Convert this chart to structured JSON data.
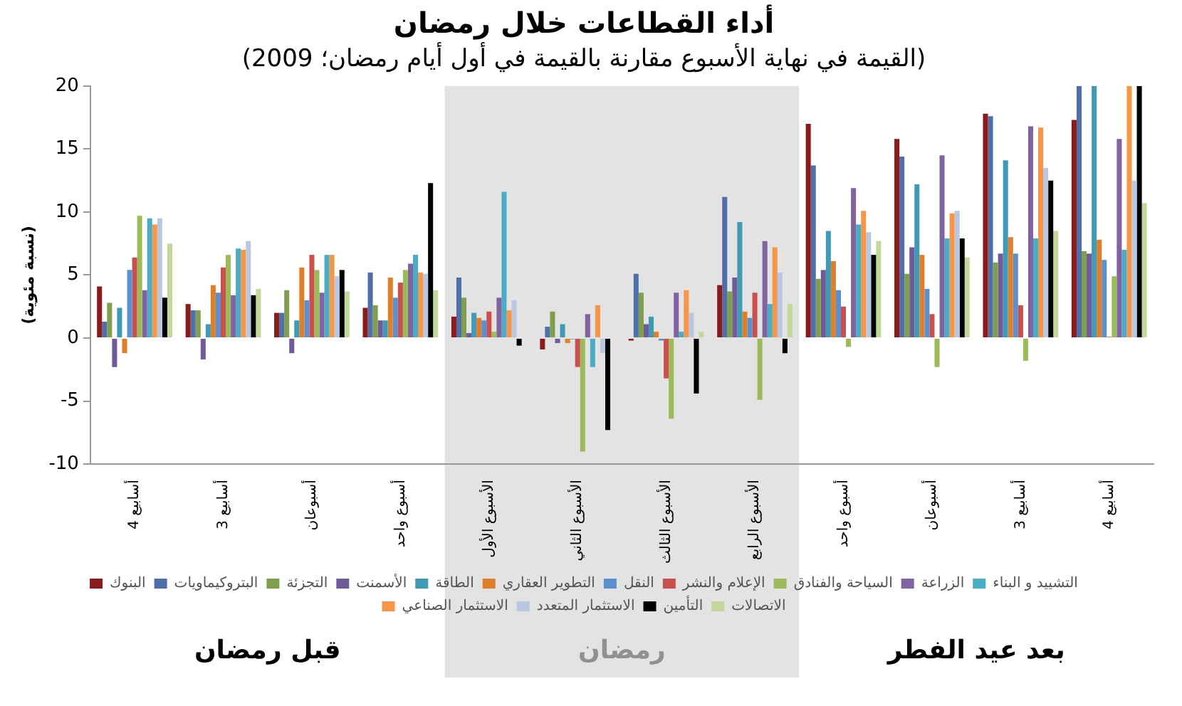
{
  "chart_data": {
    "type": "bar",
    "title": "أداء القطاعات خلال رمضان",
    "subtitle": "(القيمة في نهاية الأسبوع مقارنة بالقيمة في أول أيام رمضان؛ 2009)",
    "ylabel": "(نسبة مئوية)",
    "categories": [
      "4 أسابيع",
      "3 أسابيع",
      "أسبوعان",
      "أسبوع واحد",
      "الأسبوع الأول",
      "الأسبوع الثاني",
      "الأسبوع الثالث",
      "الأسبوع الرابع",
      "أسبوع واحد",
      "أسبوعان",
      "3 أسابيع",
      "4 أسابيع"
    ],
    "ylim": [
      -10,
      20
    ],
    "yticks": [
      -10,
      -5,
      0,
      5,
      10,
      15,
      20
    ],
    "grid": false,
    "legend": "bottom",
    "bands": [
      {
        "axis": "x",
        "from": "الأسبوع الأول",
        "to": "الأسبوع الرابع",
        "label": "رمضان",
        "color": "#e3e3e3"
      }
    ],
    "annotations": [
      "قبل رمضان",
      "بعد عيد الفطر"
    ],
    "series": [
      {
        "name": "البنوك",
        "color": "#8b1a1a",
        "values": [
          4.1,
          2.7,
          2.0,
          2.4,
          1.7,
          -0.9,
          -0.2,
          4.2,
          17.0,
          15.8,
          17.8,
          17.3
        ]
      },
      {
        "name": "البتروكيماويات",
        "color": "#4f6fa8",
        "values": [
          1.3,
          2.2,
          2.0,
          5.2,
          4.8,
          0.9,
          5.1,
          11.2,
          13.7,
          14.4,
          17.6,
          20
        ]
      },
      {
        "name": "التجزئة",
        "color": "#7f9f4f",
        "values": [
          2.8,
          2.2,
          3.8,
          2.6,
          3.2,
          2.1,
          3.6,
          3.7,
          4.7,
          5.1,
          6.0,
          6.9
        ]
      },
      {
        "name": "الأسمنت",
        "color": "#6f5a9a",
        "values": [
          -2.3,
          -1.7,
          -1.2,
          1.4,
          0.4,
          -0.4,
          1.1,
          4.8,
          5.4,
          7.2,
          6.7,
          6.7
        ]
      },
      {
        "name": "الطاقة",
        "color": "#3f9bb5",
        "values": [
          2.4,
          1.1,
          1.4,
          1.4,
          2.0,
          1.1,
          1.7,
          9.2,
          8.5,
          12.2,
          14.1,
          20
        ]
      },
      {
        "name": "التطوير العقاري",
        "color": "#e07f2a",
        "values": [
          -1.2,
          4.2,
          5.6,
          4.8,
          1.6,
          -0.4,
          0.5,
          2.1,
          6.1,
          6.6,
          8.0,
          7.8
        ]
      },
      {
        "name": "النقل",
        "color": "#5b8fd0",
        "values": [
          5.4,
          3.6,
          3.0,
          3.2,
          1.4,
          -0.1,
          -0.2,
          1.6,
          3.8,
          3.9,
          6.7,
          6.2
        ]
      },
      {
        "name": "الإعلام والنشر",
        "color": "#c9504d",
        "values": [
          6.4,
          5.6,
          6.6,
          4.4,
          2.1,
          -2.3,
          -3.2,
          3.6,
          2.5,
          1.9,
          2.6,
          0.1
        ]
      },
      {
        "name": "السياحة والفنادق",
        "color": "#9bbb59",
        "values": [
          9.7,
          6.6,
          5.4,
          5.4,
          0.5,
          -9.0,
          -6.4,
          -4.9,
          -0.7,
          -2.3,
          -1.8,
          4.9
        ]
      },
      {
        "name": "الزراعة",
        "color": "#8064a2",
        "values": [
          3.8,
          3.4,
          3.6,
          5.9,
          3.2,
          1.9,
          3.6,
          7.7,
          11.9,
          14.5,
          16.8,
          15.8
        ]
      },
      {
        "name": "التشييد و البناء",
        "color": "#4bacc6",
        "values": [
          9.5,
          7.1,
          6.6,
          6.6,
          11.6,
          -2.3,
          0.5,
          2.7,
          9.0,
          7.9,
          7.9,
          7.0
        ]
      },
      {
        "name": "الاستثمار الصناعي",
        "color": "#f79646",
        "values": [
          9.0,
          7.0,
          6.6,
          5.2,
          2.2,
          2.6,
          3.8,
          7.2,
          10.1,
          9.9,
          16.7,
          20
        ]
      },
      {
        "name": "الاستثمار المتعدد",
        "color": "#b9c8e0",
        "values": [
          9.5,
          7.7,
          4.9,
          5.1,
          3.0,
          -1.2,
          2.0,
          5.2,
          8.4,
          10.1,
          13.5,
          12.5
        ]
      },
      {
        "name": "التأمين",
        "color": "#000000",
        "values": [
          3.2,
          3.4,
          5.4,
          12.3,
          -0.6,
          -7.3,
          -4.4,
          -1.2,
          6.6,
          7.9,
          12.5,
          20
        ]
      },
      {
        "name": "الاتصالات",
        "color": "#c4d79b",
        "values": [
          7.5,
          3.9,
          3.7,
          3.8,
          0,
          0,
          0.5,
          2.7,
          7.7,
          6.4,
          8.5,
          10.7
        ]
      }
    ]
  }
}
